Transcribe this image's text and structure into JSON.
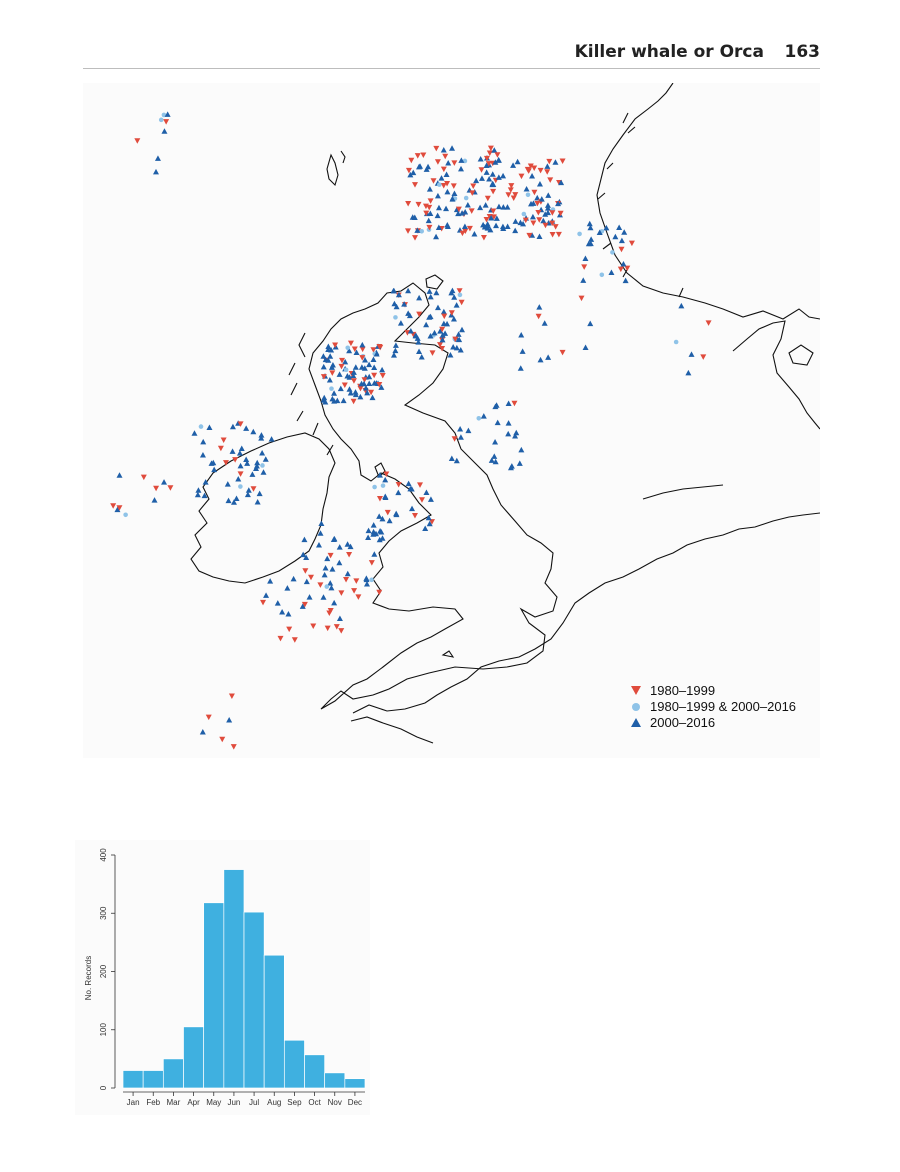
{
  "header": {
    "title": "Killer whale or Orca",
    "page_number": "163"
  },
  "map": {
    "legend": [
      {
        "label": "1980–1999",
        "symbol": "down-triangle-icon",
        "color": "#e04b3c"
      },
      {
        "label": "1980–1999 & 2000–2016",
        "symbol": "circle-icon",
        "color": "#8fc3e8"
      },
      {
        "label": "2000–2016",
        "symbol": "up-triangle-icon",
        "color": "#1f5fa8"
      }
    ]
  },
  "chart_data": {
    "type": "bar",
    "categories": [
      "Jan",
      "Feb",
      "Mar",
      "Apr",
      "May",
      "Jun",
      "Jul",
      "Aug",
      "Sep",
      "Oct",
      "Nov",
      "Dec"
    ],
    "values": [
      30,
      30,
      50,
      105,
      318,
      375,
      302,
      228,
      82,
      57,
      26,
      16
    ],
    "ylabel": "No. Records",
    "ylim": [
      0,
      400
    ],
    "yticks": [
      "0",
      "100",
      "200",
      "300",
      "400"
    ],
    "bar_color": "#3fb0e0",
    "grid": false
  }
}
